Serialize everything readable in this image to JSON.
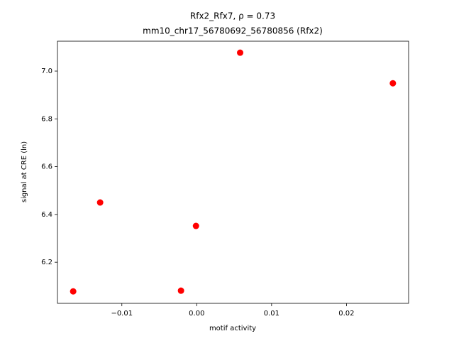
{
  "chart_data": {
    "type": "scatter",
    "title": "Rfx2_Rfx7, ρ = 0.73",
    "subtitle": "mm10_chr17_56780692_56780856 (Rfx2)",
    "x_label": "motif activity",
    "y_label": "signal at CRE (ln)",
    "series": [
      {
        "color": "#ff0000",
        "x": [
          -0.0165,
          -0.0129,
          -0.0021,
          -0.0001,
          0.0058,
          0.0262
        ],
        "values": [
          6.078,
          6.45,
          6.081,
          6.352,
          7.077,
          6.949
        ]
      }
    ],
    "xlim": [
      -0.0186,
      0.0283
    ],
    "ylim": [
      6.028,
      7.125
    ],
    "xticks": [
      {
        "value": -0.01,
        "label": "−0.01"
      },
      {
        "value": 0,
        "label": "0.00"
      },
      0.01,
      0.02
    ],
    "yticks": [
      {
        "value": 6.2,
        "label": "6.2"
      },
      6.4,
      6.6,
      6.8,
      {
        "value": 7.0,
        "label": "7.0"
      }
    ]
  }
}
